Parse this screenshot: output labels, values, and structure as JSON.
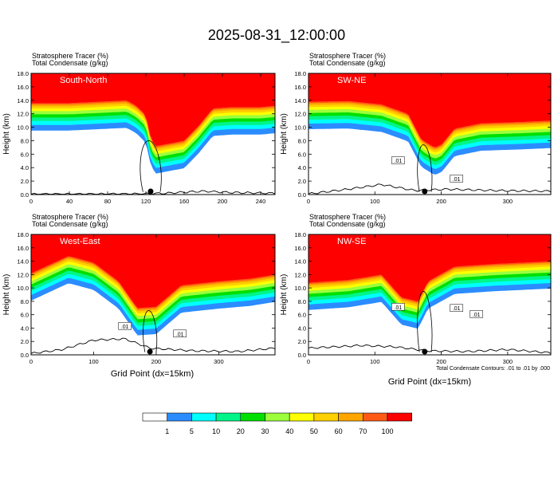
{
  "page_title": "2025-08-31_12:00:00",
  "colors": {
    "bins": [
      "#ffffff",
      "#2b8cff",
      "#00ffff",
      "#00f589",
      "#00e000",
      "#9cff3c",
      "#ffff00",
      "#ffd000",
      "#ffa500",
      "#ff5a14",
      "#ff0000"
    ],
    "contour": "#000000",
    "frame": "#000000"
  },
  "chart_data": [
    {
      "type": "heatmap",
      "panel": "top-left",
      "title": "South-North",
      "titles": [
        "Stratosphere Tracer   (%)",
        "Total Condensate   (g/kg)"
      ],
      "ylabel": "Height (km)",
      "xlabel": "",
      "xlim": [
        0,
        255
      ],
      "ylim": [
        0,
        18
      ],
      "x_ticks": [
        0,
        40,
        80,
        120,
        160,
        200,
        240
      ],
      "y_ticks": [
        "0.0",
        "2.0",
        "4.0",
        "6.0",
        "8.0",
        "10.0",
        "12.0",
        "14.0",
        "16.0",
        "18.0"
      ],
      "tropopause_km": [
        [
          0,
          13.6
        ],
        [
          40,
          13.6
        ],
        [
          70,
          13.8
        ],
        [
          100,
          14.0
        ],
        [
          110,
          13.2
        ],
        [
          120,
          11.8
        ],
        [
          125,
          8.5
        ],
        [
          130,
          7.2
        ],
        [
          160,
          8.0
        ],
        [
          175,
          10.2
        ],
        [
          190,
          12.8
        ],
        [
          210,
          13.0
        ],
        [
          240,
          13.0
        ],
        [
          255,
          13.2
        ]
      ],
      "terrain_km": [
        [
          0,
          0.05
        ],
        [
          120,
          0.1
        ],
        [
          140,
          0.2
        ],
        [
          180,
          0.5
        ],
        [
          210,
          0.3
        ],
        [
          255,
          0.2
        ]
      ],
      "marker_x": 125,
      "contour_labels": []
    },
    {
      "type": "heatmap",
      "panel": "top-right",
      "title": "SW-NE",
      "titles": [
        "Stratosphere Tracer   (%)",
        "Total Condensate   (g/kg)"
      ],
      "ylabel": "Height (km)",
      "xlabel": "",
      "xlim": [
        0,
        365
      ],
      "ylim": [
        0,
        18
      ],
      "x_ticks": [
        0,
        100,
        200,
        300
      ],
      "y_ticks": [
        "0.0",
        "2.0",
        "4.0",
        "6.0",
        "8.0",
        "10.0",
        "12.0",
        "14.0",
        "16.0",
        "18.0"
      ],
      "tropopause_km": [
        [
          0,
          13.8
        ],
        [
          60,
          13.9
        ],
        [
          110,
          13.4
        ],
        [
          150,
          12.0
        ],
        [
          170,
          8.2
        ],
        [
          190,
          7.0
        ],
        [
          200,
          7.4
        ],
        [
          220,
          9.8
        ],
        [
          260,
          10.6
        ],
        [
          320,
          10.8
        ],
        [
          365,
          11.0
        ]
      ],
      "terrain_km": [
        [
          0,
          0.1
        ],
        [
          60,
          0.8
        ],
        [
          110,
          1.5
        ],
        [
          160,
          0.6
        ],
        [
          210,
          0.8
        ],
        [
          280,
          0.6
        ],
        [
          365,
          0.5
        ]
      ],
      "marker_x": 175,
      "contour_labels": [
        ".01",
        ".01"
      ]
    },
    {
      "type": "heatmap",
      "panel": "bottom-left",
      "title": "West-East",
      "titles": [
        "Stratosphere Tracer   (%)",
        "Total Condensate   (g/kg)"
      ],
      "ylabel": "Height (km)",
      "xlabel": "",
      "xlim": [
        0,
        390
      ],
      "ylim": [
        0,
        18
      ],
      "x_ticks": [
        0,
        100,
        200,
        300
      ],
      "y_ticks": [
        "0.0",
        "2.0",
        "4.0",
        "6.0",
        "8.0",
        "10.0",
        "12.0",
        "14.0",
        "16.0",
        "18.0"
      ],
      "tropopause_km": [
        [
          0,
          12.2
        ],
        [
          60,
          14.8
        ],
        [
          100,
          13.8
        ],
        [
          140,
          11.0
        ],
        [
          170,
          7.0
        ],
        [
          200,
          7.2
        ],
        [
          240,
          10.4
        ],
        [
          300,
          11.0
        ],
        [
          350,
          11.4
        ],
        [
          390,
          12.0
        ]
      ],
      "terrain_km": [
        [
          0,
          0.2
        ],
        [
          50,
          0.8
        ],
        [
          100,
          2.2
        ],
        [
          150,
          2.4
        ],
        [
          190,
          1.0
        ],
        [
          260,
          0.6
        ],
        [
          330,
          0.5
        ],
        [
          390,
          1.0
        ]
      ],
      "marker_x": 190,
      "contour_labels": [
        ".01",
        ".01"
      ]
    },
    {
      "type": "heatmap",
      "panel": "bottom-right",
      "title": "NW-SE",
      "titles": [
        "Stratosphere Tracer   (%)",
        "Total Condensate   (g/kg)"
      ],
      "ylabel": "Height (km)",
      "xlabel": "Grid Point (dx=15km)",
      "xlim": [
        0,
        365
      ],
      "ylim": [
        0,
        18
      ],
      "x_ticks": [
        0,
        100,
        200,
        300
      ],
      "y_ticks": [
        "0.0",
        "2.0",
        "4.0",
        "6.0",
        "8.0",
        "10.0",
        "12.0",
        "14.0",
        "16.0",
        "18.0"
      ],
      "tropopause_km": [
        [
          0,
          10.8
        ],
        [
          60,
          11.2
        ],
        [
          110,
          12.0
        ],
        [
          140,
          8.6
        ],
        [
          165,
          8.0
        ],
        [
          180,
          11.0
        ],
        [
          220,
          13.2
        ],
        [
          280,
          13.6
        ],
        [
          365,
          14.0
        ]
      ],
      "terrain_km": [
        [
          0,
          1.0
        ],
        [
          80,
          1.4
        ],
        [
          130,
          1.2
        ],
        [
          180,
          0.6
        ],
        [
          240,
          0.5
        ],
        [
          300,
          0.8
        ],
        [
          365,
          0.3
        ]
      ],
      "marker_x": 175,
      "contour_labels": [
        ".01",
        ".01",
        ".01"
      ],
      "footnote": "Total Condensate Contours: .01 to .01 by .000"
    }
  ],
  "left_xlabel": "Grid Point (dx=15km)",
  "colorbar": {
    "levels": [
      "1",
      "5",
      "10",
      "20",
      "30",
      "40",
      "50",
      "60",
      "70",
      "100"
    ]
  }
}
